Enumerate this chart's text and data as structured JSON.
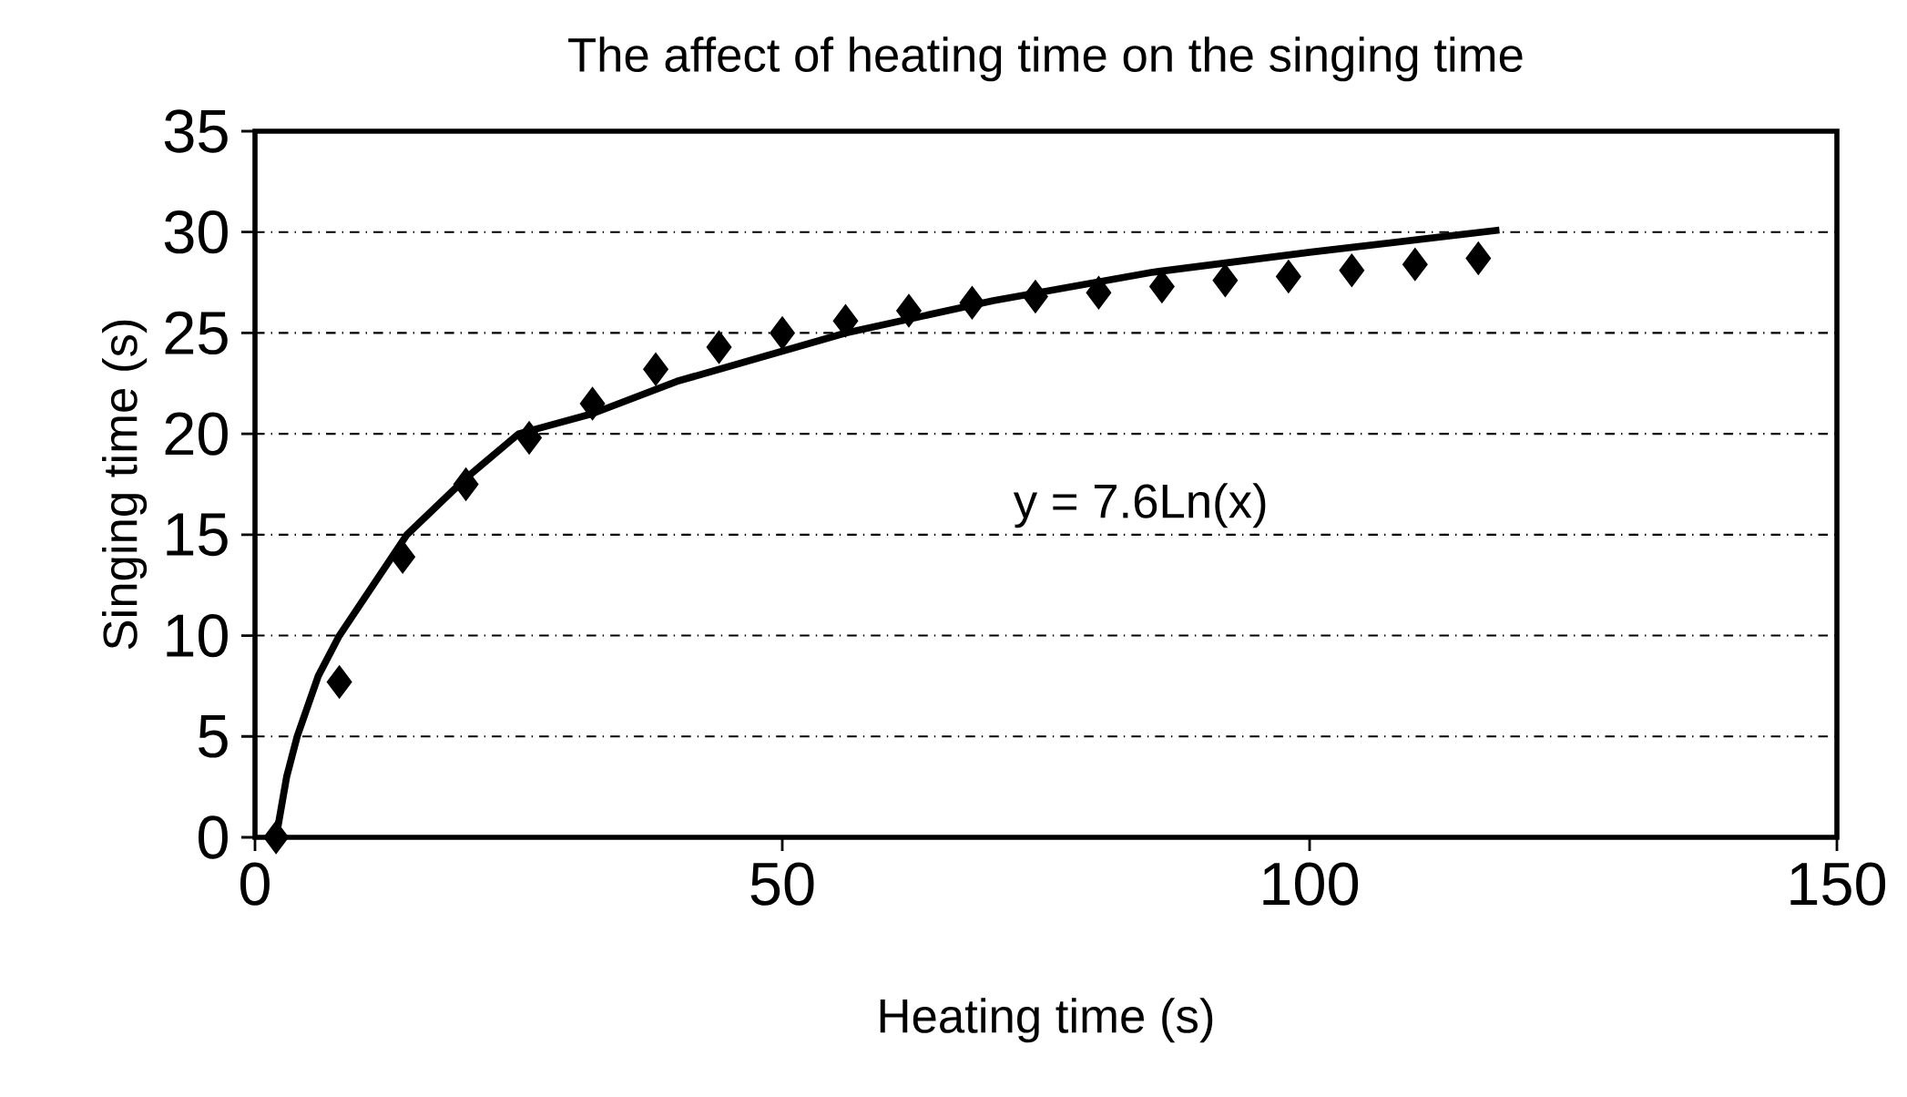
{
  "chart_data": {
    "type": "scatter",
    "title": "The affect of heating time on the singing time",
    "xlabel": "Heating time (s)",
    "ylabel": "Singing time (s)",
    "xlim": [
      0,
      150
    ],
    "xticks": [
      0,
      50,
      100,
      150
    ],
    "ylim": [
      0,
      35
    ],
    "yticks": [
      0,
      5,
      10,
      15,
      20,
      25,
      30,
      35
    ],
    "grid": "y",
    "x": [
      2,
      8,
      14,
      20,
      26,
      32,
      38,
      44,
      50,
      56,
      62,
      68,
      74,
      80,
      86,
      92,
      98,
      104,
      110,
      116
    ],
    "series": [
      {
        "color": "#000000",
        "marker": "diamond",
        "values": [
          0,
          7.7,
          13.9,
          17.5,
          19.8,
          21.5,
          23.2,
          24.3,
          25.0,
          25.6,
          26.1,
          26.5,
          26.8,
          27.0,
          27.3,
          27.6,
          27.8,
          28.1,
          28.4,
          28.7
        ]
      },
      {
        "type": "line",
        "color": "#000000",
        "marker": "none",
        "x": [
          2,
          3,
          4,
          6,
          8,
          14.4,
          20,
          25,
          32,
          40,
          56,
          70,
          85,
          100,
          118
        ],
        "values": [
          0,
          3,
          5,
          8,
          10,
          15,
          17.8,
          20,
          21.0,
          22.6,
          25,
          26.6,
          28,
          29,
          30.1
        ]
      }
    ],
    "annotations": [
      "y = 7.6Ln(x)"
    ]
  }
}
